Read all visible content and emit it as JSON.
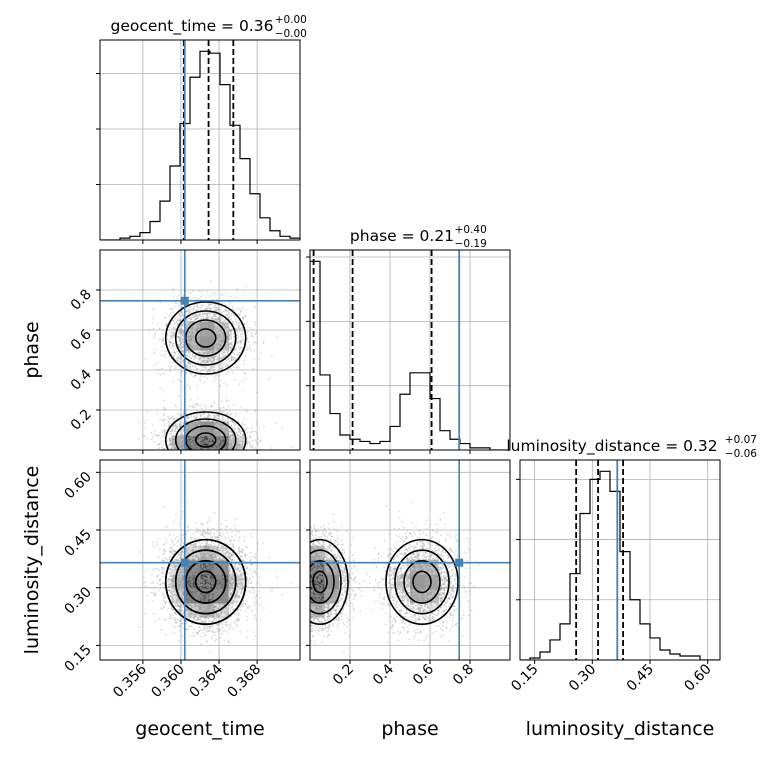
{
  "chart_data": {
    "type": "corner",
    "parameters": [
      "geocent_time",
      "phase",
      "luminosity_distance"
    ],
    "axis_labels": [
      "geocent_time",
      "phase",
      "luminosity_distance"
    ],
    "ranges": [
      [
        0.3515,
        0.3725
      ],
      [
        0.0,
        1.0
      ],
      [
        0.112,
        0.632
      ]
    ],
    "ticks": [
      {
        "values": [
          0.356,
          0.36,
          0.364,
          0.368
        ],
        "labels": [
          "0.356",
          "0.360",
          "0.364",
          "0.368"
        ]
      },
      {
        "values": [
          0.2,
          0.4,
          0.6,
          0.8
        ],
        "labels": [
          "0.2",
          "0.4",
          "0.6",
          "0.8"
        ]
      },
      {
        "values": [
          0.15,
          0.3,
          0.45,
          0.6
        ],
        "labels": [
          "0.15",
          "0.30",
          "0.45",
          "0.60"
        ]
      }
    ],
    "truths": [
      0.3604,
      0.746,
      0.365
    ],
    "titles": [
      {
        "name": "geocent_time",
        "median": "0.36",
        "plus": "+0.00",
        "minus": "−0.00"
      },
      {
        "name": "phase",
        "median": "0.21",
        "plus": "+0.40",
        "minus": "−0.19"
      },
      {
        "name": "luminosity_distance",
        "median": "0.32",
        "plus": "+0.07",
        "minus": "−0.06"
      }
    ],
    "quantiles": [
      [
        0.3603,
        0.3629,
        0.3655
      ],
      [
        0.018,
        0.213,
        0.608
      ],
      [
        0.258,
        0.315,
        0.38
      ]
    ],
    "histograms": [
      {
        "edges_start": 0.3515,
        "bin_width": 0.00105,
        "counts": [
          0,
          0,
          1,
          2,
          4,
          10,
          21,
          40,
          63,
          88,
          102,
          101,
          84,
          62,
          44,
          25,
          12,
          5,
          2,
          1
        ]
      },
      {
        "edges_start": 0.0,
        "bin_width": 0.05,
        "counts": [
          88,
          35,
          17,
          7,
          5,
          4,
          3,
          4,
          11,
          26,
          36,
          36,
          24,
          9,
          5,
          3,
          1,
          1,
          0,
          0
        ]
      },
      {
        "edges_start": 0.112,
        "bin_width": 0.026,
        "counts": [
          0,
          1,
          4,
          10,
          18,
          43,
          73,
          90,
          94,
          84,
          54,
          30,
          18,
          11,
          5,
          3,
          2,
          2,
          0,
          0
        ]
      }
    ],
    "posterior_modes": [
      {
        "center": [
          0.3626,
          0.56,
          0.315
        ],
        "sigma": [
          0.0021,
          0.09,
          0.055
        ],
        "weight": 0.5
      },
      {
        "center": [
          0.3626,
          0.05,
          0.315
        ],
        "sigma": [
          0.0021,
          0.07,
          0.055
        ],
        "weight": 0.5
      }
    ],
    "grid": true,
    "truth_color": "#4682b4",
    "hist_color": "#000000",
    "sample_color": "#999999"
  }
}
